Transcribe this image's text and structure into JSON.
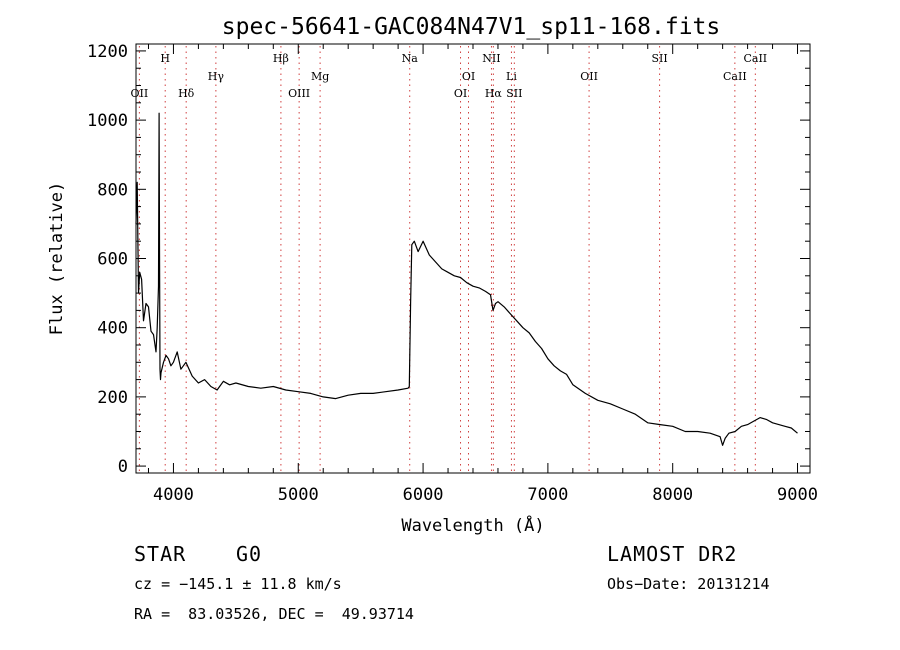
{
  "chart_data": {
    "type": "line",
    "title": "spec-56641-GAC084N47V1_sp11-168.fits",
    "xlabel": "Wavelength (Å)",
    "ylabel": "Flux (relative)",
    "xlim": [
      3700,
      9100
    ],
    "ylim": [
      -20,
      1220
    ],
    "xticks": [
      4000,
      5000,
      6000,
      7000,
      8000,
      9000
    ],
    "yticks": [
      0,
      200,
      400,
      600,
      800,
      1000,
      1200
    ],
    "minor_x_step": 200,
    "minor_y_step": 50,
    "line_color": "#000000",
    "marker_color": "#d04040",
    "series": [
      {
        "name": "flux",
        "x": [
          3700,
          3710,
          3720,
          3730,
          3745,
          3760,
          3780,
          3800,
          3820,
          3840,
          3860,
          3870,
          3880,
          3885,
          3888,
          3892,
          3896,
          3900,
          3920,
          3940,
          3960,
          3980,
          4000,
          4030,
          4060,
          4100,
          4150,
          4200,
          4250,
          4300,
          4350,
          4400,
          4450,
          4500,
          4600,
          4700,
          4800,
          4900,
          5000,
          5100,
          5200,
          5300,
          5400,
          5500,
          5600,
          5700,
          5800,
          5880,
          5890,
          5900,
          5910,
          5930,
          5960,
          6000,
          6050,
          6100,
          6150,
          6200,
          6250,
          6300,
          6350,
          6400,
          6450,
          6500,
          6540,
          6560,
          6580,
          6600,
          6650,
          6700,
          6750,
          6800,
          6850,
          6900,
          6950,
          7000,
          7050,
          7100,
          7150,
          7200,
          7300,
          7400,
          7500,
          7600,
          7700,
          7800,
          7900,
          8000,
          8100,
          8200,
          8300,
          8380,
          8400,
          8420,
          8450,
          8500,
          8550,
          8600,
          8650,
          8700,
          8750,
          8800,
          8850,
          8900,
          8950,
          9000
        ],
        "y": [
          700,
          820,
          500,
          560,
          540,
          420,
          470,
          460,
          390,
          380,
          330,
          400,
          520,
          1020,
          640,
          280,
          250,
          270,
          300,
          320,
          310,
          290,
          300,
          330,
          280,
          300,
          260,
          240,
          250,
          230,
          220,
          245,
          235,
          240,
          230,
          225,
          230,
          220,
          215,
          210,
          200,
          195,
          205,
          210,
          210,
          215,
          220,
          225,
          230,
          470,
          640,
          650,
          620,
          650,
          610,
          590,
          570,
          560,
          550,
          545,
          530,
          520,
          515,
          505,
          495,
          450,
          470,
          475,
          460,
          440,
          420,
          400,
          385,
          360,
          340,
          310,
          290,
          275,
          265,
          235,
          210,
          190,
          180,
          165,
          150,
          125,
          120,
          115,
          100,
          100,
          95,
          85,
          60,
          80,
          95,
          100,
          115,
          120,
          130,
          140,
          135,
          125,
          120,
          115,
          110,
          95
        ]
      }
    ],
    "lines": [
      {
        "label": "OII",
        "wavelength": 3727,
        "row": 3
      },
      {
        "label": "H",
        "wavelength": 3934,
        "row": 1
      },
      {
        "label": "Hδ",
        "wavelength": 4102,
        "row": 3
      },
      {
        "label": "Hγ",
        "wavelength": 4340,
        "row": 2
      },
      {
        "label": "Hβ",
        "wavelength": 4861,
        "row": 1
      },
      {
        "label": "OIII",
        "wavelength": 5007,
        "row": 3
      },
      {
        "label": "Mg",
        "wavelength": 5175,
        "row": 2
      },
      {
        "label": "Na",
        "wavelength": 5893,
        "row": 1
      },
      {
        "label": "OI",
        "wavelength": 6300,
        "row": 3
      },
      {
        "label": "OI",
        "wavelength": 6364,
        "row": 2
      },
      {
        "label": "NII",
        "wavelength": 6548,
        "row": 1
      },
      {
        "label": "Hα",
        "wavelength": 6563,
        "row": 3
      },
      {
        "label": "Li",
        "wavelength": 6708,
        "row": 2
      },
      {
        "label": "SII",
        "wavelength": 6731,
        "row": 3
      },
      {
        "label": "OII",
        "wavelength": 7330,
        "row": 2
      },
      {
        "label": "SII",
        "wavelength": 7895,
        "row": 1
      },
      {
        "label": "CaII",
        "wavelength": 8498,
        "row": 2
      },
      {
        "label": "CaII",
        "wavelength": 8662,
        "row": 1
      }
    ]
  },
  "info": {
    "object_class": "STAR",
    "subclass": "G0",
    "cz": "cz = −145.1 ± 11.8 km/s",
    "coords": "RA =  83.03526, DEC =  49.93714",
    "survey": "LAMOST DR2",
    "obs_date": "Obs−Date: 20131214"
  }
}
